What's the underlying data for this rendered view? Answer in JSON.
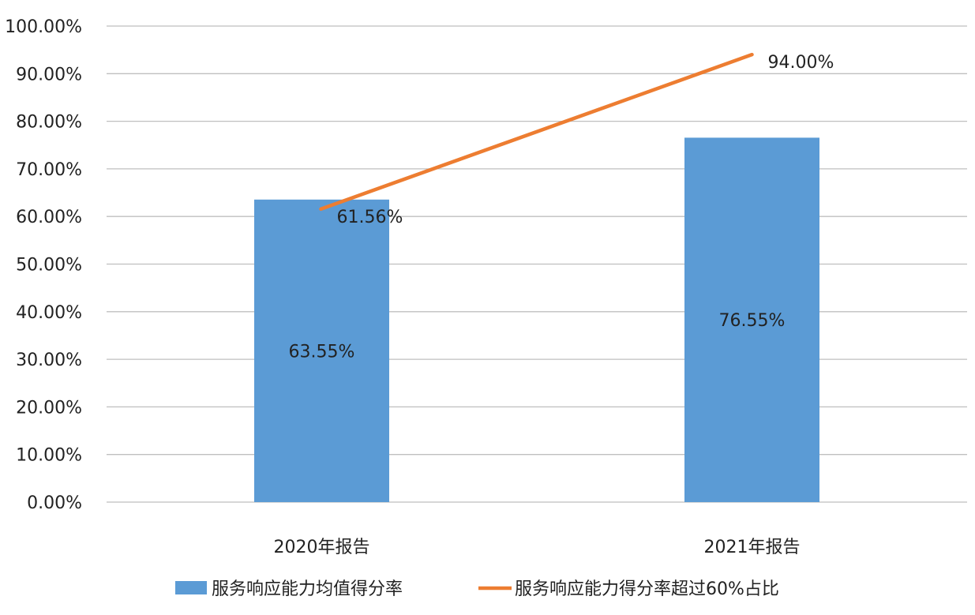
{
  "chart_data": {
    "type": "bar",
    "categories": [
      "2020年报告",
      "2021年报告"
    ],
    "series": [
      {
        "name": "服务响应能力均值得分率",
        "type": "bar",
        "values": [
          63.55,
          76.55
        ],
        "labels": [
          "63.55%",
          "76.55%"
        ],
        "color": "#5b9bd5"
      },
      {
        "name": "服务响应能力得分率超过60%占比",
        "type": "line",
        "values": [
          61.56,
          94.0
        ],
        "labels": [
          "61.56%",
          "94.00%"
        ],
        "color": "#ed7d31"
      }
    ],
    "y_ticks": [
      "0.00%",
      "10.00%",
      "20.00%",
      "30.00%",
      "40.00%",
      "50.00%",
      "60.00%",
      "70.00%",
      "80.00%",
      "90.00%",
      "100.00%"
    ],
    "ylim": [
      0,
      100
    ],
    "grid": true,
    "legend_position": "bottom",
    "title": "",
    "xlabel": "",
    "ylabel": "",
    "gridline_color": "#bfbfbf"
  }
}
